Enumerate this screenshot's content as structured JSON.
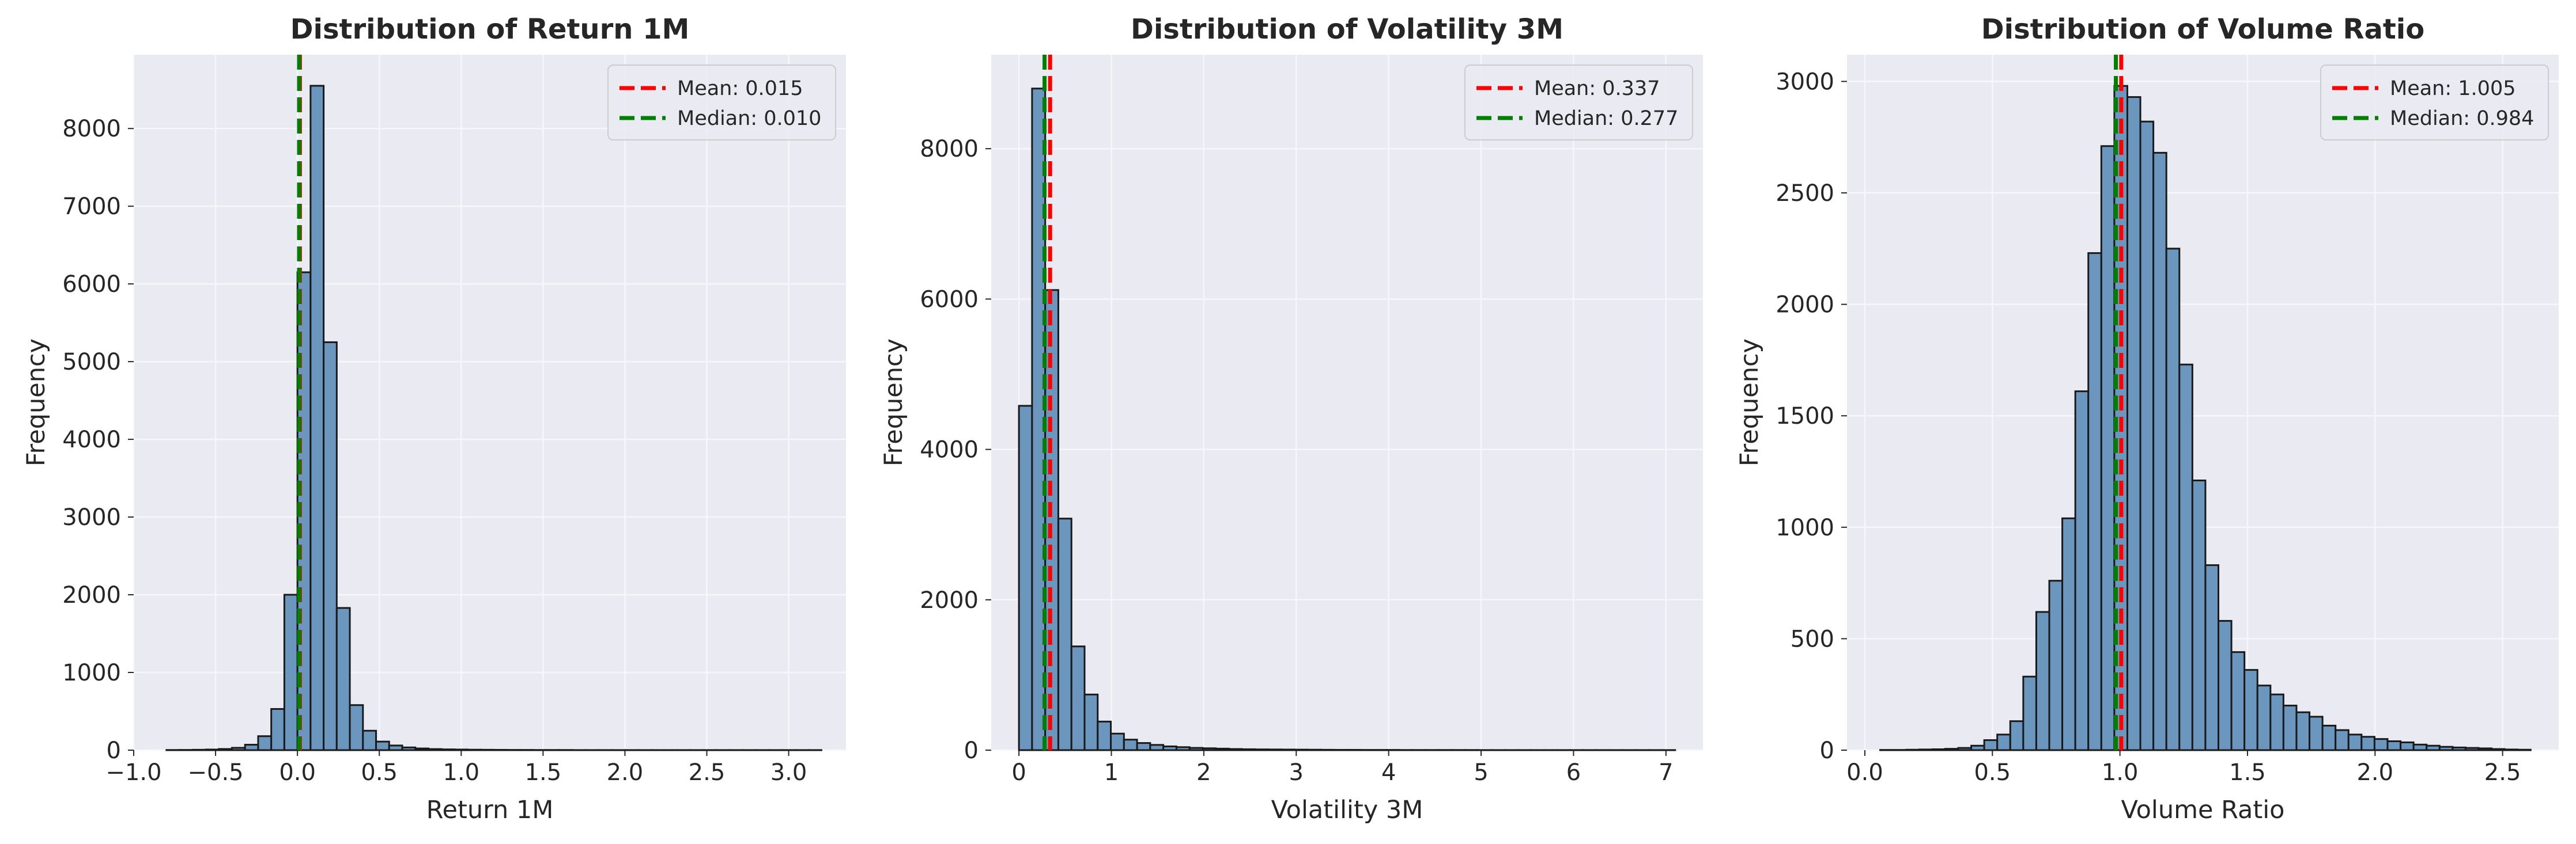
{
  "chart_data": [
    {
      "type": "bar",
      "title": "Distribution of Return 1M",
      "xlabel": "Return 1M",
      "ylabel": "Frequency",
      "bin_edges_start": -0.8,
      "bin_width": 0.08,
      "values": [
        2,
        3,
        5,
        8,
        15,
        30,
        70,
        180,
        530,
        2000,
        6150,
        8550,
        5250,
        1830,
        580,
        250,
        110,
        60,
        35,
        22,
        14,
        10,
        8,
        6,
        5,
        4,
        3,
        3,
        2,
        2,
        2,
        1,
        1,
        1,
        1,
        1,
        1,
        1,
        1,
        1,
        1,
        1,
        1,
        1,
        1,
        1,
        1,
        1,
        1,
        1
      ],
      "xlim": [
        -1.0,
        3.35
      ],
      "ylim": [
        0,
        8950
      ],
      "xticks": [
        -1.0,
        -0.5,
        0.0,
        0.5,
        1.0,
        1.5,
        2.0,
        2.5,
        3.0
      ],
      "xtick_labels": [
        "−1.0",
        "−0.5",
        "0.0",
        "0.5",
        "1.0",
        "1.5",
        "2.0",
        "2.5",
        "3.0"
      ],
      "yticks": [
        0,
        1000,
        2000,
        3000,
        4000,
        5000,
        6000,
        7000,
        8000
      ],
      "ytick_labels": [
        "0",
        "1000",
        "2000",
        "3000",
        "4000",
        "5000",
        "6000",
        "7000",
        "8000"
      ],
      "mean": 0.015,
      "median": 0.01,
      "legend": [
        {
          "label": "Mean: 0.015",
          "color": "#ff0000"
        },
        {
          "label": "Median: 0.010",
          "color": "#008000"
        }
      ],
      "legend_position": "top-right",
      "grid": true
    },
    {
      "type": "bar",
      "title": "Distribution of Volatility 3M",
      "xlabel": "Volatility 3M",
      "ylabel": "Frequency",
      "bin_edges_start": 0.0,
      "bin_width": 0.142,
      "values": [
        4580,
        8800,
        6120,
        3080,
        1380,
        740,
        380,
        220,
        140,
        95,
        70,
        50,
        40,
        30,
        25,
        20,
        15,
        12,
        10,
        9,
        8,
        7,
        6,
        5,
        4,
        4,
        3,
        3,
        3,
        2,
        2,
        2,
        2,
        2,
        2,
        1,
        1,
        1,
        1,
        1,
        1,
        1,
        1,
        1,
        1,
        1,
        1,
        1,
        1,
        1
      ],
      "xlim": [
        -0.3,
        7.4
      ],
      "ylim": [
        0,
        9250
      ],
      "xticks": [
        0,
        1,
        2,
        3,
        4,
        5,
        6,
        7
      ],
      "xtick_labels": [
        "0",
        "1",
        "2",
        "3",
        "4",
        "5",
        "6",
        "7"
      ],
      "yticks": [
        0,
        2000,
        4000,
        6000,
        8000
      ],
      "ytick_labels": [
        "0",
        "2000",
        "4000",
        "6000",
        "8000"
      ],
      "mean": 0.337,
      "median": 0.277,
      "legend": [
        {
          "label": "Mean: 0.337",
          "color": "#ff0000"
        },
        {
          "label": "Median: 0.277",
          "color": "#008000"
        }
      ],
      "legend_position": "top-right",
      "grid": true
    },
    {
      "type": "bar",
      "title": "Distribution of Volume Ratio",
      "xlabel": "Volume Ratio",
      "ylabel": "Frequency",
      "bin_edges_start": 0.06,
      "bin_width": 0.051,
      "values": [
        1,
        1,
        2,
        3,
        4,
        6,
        10,
        20,
        45,
        70,
        130,
        330,
        620,
        760,
        1040,
        1610,
        2230,
        2710,
        2980,
        2930,
        2820,
        2680,
        2250,
        1730,
        1210,
        830,
        580,
        440,
        360,
        290,
        250,
        200,
        170,
        150,
        110,
        90,
        70,
        60,
        50,
        40,
        35,
        25,
        20,
        15,
        12,
        10,
        8,
        5,
        3,
        2
      ],
      "xlim": [
        -0.07,
        2.72
      ],
      "ylim": [
        0,
        3120
      ],
      "xticks": [
        0.0,
        0.5,
        1.0,
        1.5,
        2.0,
        2.5
      ],
      "xtick_labels": [
        "0.0",
        "0.5",
        "1.0",
        "1.5",
        "2.0",
        "2.5"
      ],
      "yticks": [
        0,
        500,
        1000,
        1500,
        2000,
        2500,
        3000
      ],
      "ytick_labels": [
        "0",
        "500",
        "1000",
        "1500",
        "2000",
        "2500",
        "3000"
      ],
      "mean": 1.005,
      "median": 0.984,
      "legend": [
        {
          "label": "Mean: 1.005",
          "color": "#ff0000"
        },
        {
          "label": "Median: 0.984",
          "color": "#008000"
        }
      ],
      "legend_position": "top-right",
      "grid": true
    }
  ],
  "colors": {
    "bar_fill": "#6b96bd",
    "bar_edge": "#1a1a1a",
    "plot_background": "#eaeaf2",
    "grid": "#f7f7fb",
    "mean_line": "#ff0000",
    "median_line": "#008000"
  }
}
